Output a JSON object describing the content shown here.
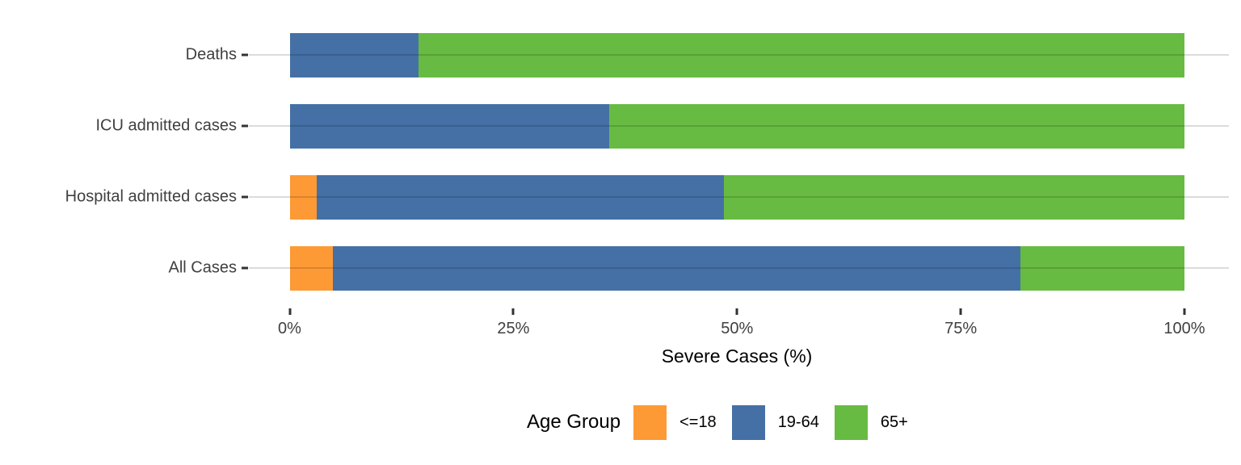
{
  "chart_data": {
    "type": "bar",
    "orientation": "horizontal",
    "stacked": true,
    "stack_total": 100,
    "categories": [
      "Deaths",
      "ICU admitted cases",
      "Hospital admitted cases",
      "All Cases"
    ],
    "series": [
      {
        "name": "<=18",
        "color": "#FD9A35",
        "values": [
          0,
          0,
          3.0,
          4.8
        ]
      },
      {
        "name": "19-64",
        "color": "#4470A6",
        "values": [
          14.4,
          35.7,
          45.5,
          76.9
        ]
      },
      {
        "name": "65+",
        "color": "#67BB42",
        "values": [
          85.6,
          64.3,
          51.5,
          18.3
        ]
      }
    ],
    "xlabel": "Severe Cases (%)",
    "ylabel": "",
    "xlim": [
      0,
      100
    ],
    "x_ticks": [
      {
        "label": "0%",
        "value": 0
      },
      {
        "label": "25%",
        "value": 25
      },
      {
        "label": "50%",
        "value": 50
      },
      {
        "label": "75%",
        "value": 75
      },
      {
        "label": "100%",
        "value": 100
      }
    ],
    "grid": "horizontal-category-lines",
    "legend_title": "Age Group",
    "legend_position": "bottom",
    "colors": {
      "grid": "rgba(0,0,0,0.14)",
      "tick": "#333333",
      "tick_label": "#404040",
      "text": "#000000",
      "background": "#FFFFFF"
    }
  }
}
